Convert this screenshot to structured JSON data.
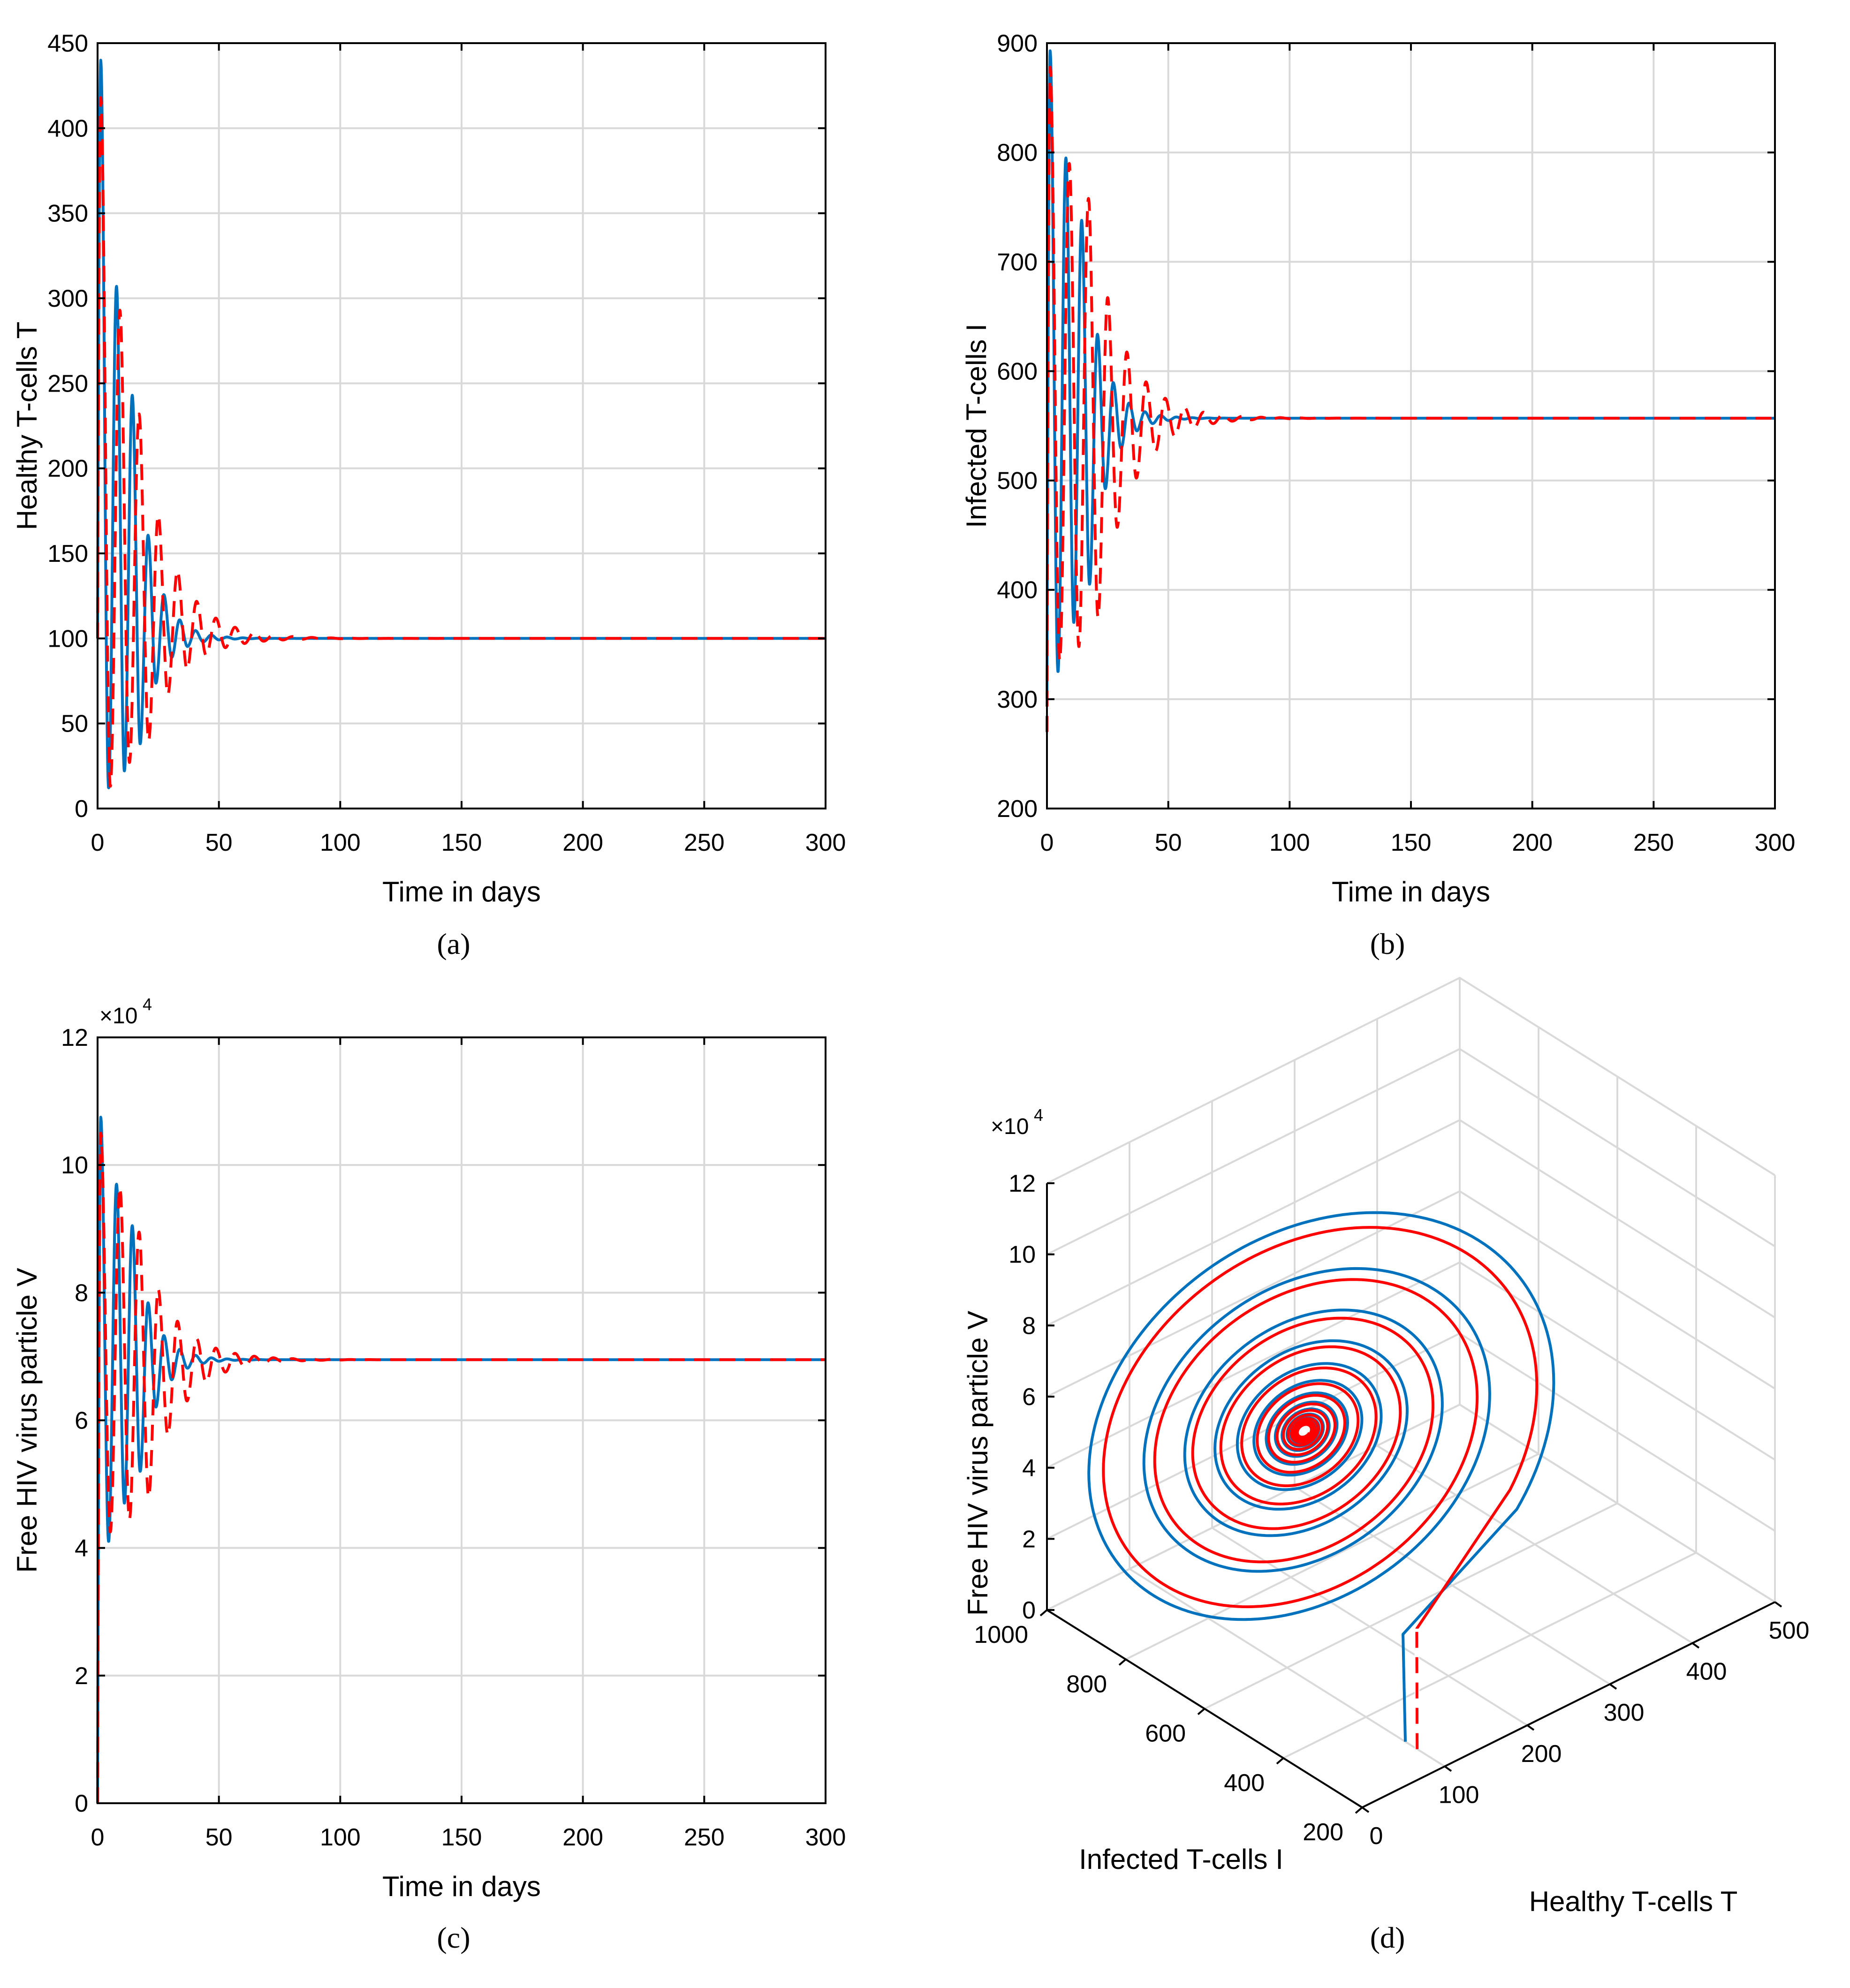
{
  "colors": {
    "blue": "#0072BD",
    "red": "#FF0000",
    "grid": "#D9D9D9",
    "axis": "#000000"
  },
  "chart_data": [
    {
      "type": "line",
      "caption": "(a)",
      "xlabel": "Time in days",
      "ylabel": "Healthy T-cells T",
      "xlim": [
        0,
        300
      ],
      "ylim": [
        0,
        450
      ],
      "xticks": [
        "0",
        "50",
        "100",
        "150",
        "200",
        "250",
        "300"
      ],
      "yticks": [
        "0",
        "50",
        "100",
        "150",
        "200",
        "250",
        "300",
        "350",
        "400",
        "450"
      ],
      "grid": true,
      "series": [
        {
          "style": "solid",
          "color": "blue",
          "start": 100,
          "eq": 100,
          "period": 6.5,
          "decay": 35,
          "peaks": [
            440,
            307,
            243
          ],
          "troughs": [
            12,
            22,
            38
          ]
        },
        {
          "style": "dashed",
          "color": "red",
          "start": 100,
          "eq": 100,
          "period": 7.9,
          "decay": 50,
          "peaks": [
            418,
            293,
            232
          ],
          "troughs": [
            13,
            27,
            40
          ]
        }
      ]
    },
    {
      "type": "line",
      "caption": "(b)",
      "xlabel": "Time in days",
      "ylabel": "Infected T-cells I",
      "xlim": [
        0,
        300
      ],
      "ylim": [
        200,
        900
      ],
      "xticks": [
        "0",
        "50",
        "100",
        "150",
        "200",
        "250",
        "300"
      ],
      "yticks": [
        "200",
        "300",
        "400",
        "500",
        "600",
        "700",
        "800",
        "900"
      ],
      "grid": true,
      "series": [
        {
          "style": "solid",
          "color": "blue",
          "start": 300,
          "eq": 557,
          "period": 6.5,
          "decay": 35,
          "peaks": [
            893,
            795,
            738
          ],
          "troughs": [
            325,
            370,
            405
          ]
        },
        {
          "style": "dashed",
          "color": "red",
          "start": 270,
          "eq": 557,
          "period": 7.9,
          "decay": 50,
          "peaks": [
            878,
            790,
            758
          ],
          "troughs": [
            335,
            348,
            375
          ]
        }
      ]
    },
    {
      "type": "line",
      "caption": "(c)",
      "xlabel": "Time in days",
      "ylabel": "Free HIV virus particle V",
      "multiplier": "×10",
      "multiplier_exp": "4",
      "xlim": [
        0,
        300
      ],
      "ylim": [
        0,
        120000
      ],
      "xticks": [
        "0",
        "50",
        "100",
        "150",
        "200",
        "250",
        "300"
      ],
      "yticks": [
        "0",
        "2",
        "4",
        "6",
        "8",
        "10",
        "12"
      ],
      "grid": true,
      "series": [
        {
          "style": "solid",
          "color": "blue",
          "start": 0,
          "eq": 69500,
          "period": 6.5,
          "decay": 35,
          "peaks": [
            107500,
            97000,
            90500
          ],
          "troughs": [
            41000,
            47000,
            52000
          ]
        },
        {
          "style": "dashed",
          "color": "red",
          "start": 0,
          "eq": 69500,
          "period": 7.9,
          "decay": 50,
          "peaks": [
            105000,
            96500,
            89500
          ],
          "troughs": [
            42500,
            44500,
            48000
          ]
        }
      ]
    },
    {
      "type": "line3d",
      "caption": "(d)",
      "xlabel": "Healthy T-cells T",
      "ylabel": "Infected T-cells I",
      "zlabel": "Free HIV virus particle V",
      "multiplier": "×10",
      "multiplier_exp": "4",
      "xlim": [
        0,
        500
      ],
      "ylim": [
        200,
        1000
      ],
      "zlim": [
        0,
        120000
      ],
      "xticks": [
        "0",
        "100",
        "200",
        "300",
        "400",
        "500"
      ],
      "yticks": [
        "200",
        "400",
        "600",
        "800",
        "1000"
      ],
      "zticks": [
        "0",
        "2",
        "4",
        "6",
        "8",
        "10",
        "12"
      ],
      "grid": true,
      "equilibrium": {
        "T": 100,
        "I": 557,
        "V": 69500
      },
      "series": [
        {
          "style": "solid",
          "color": "blue",
          "start": {
            "T": 100,
            "I": 300,
            "V": 0
          }
        },
        {
          "style": "dashed",
          "color": "red",
          "start": {
            "T": 100,
            "I": 270,
            "V": 0
          }
        }
      ]
    }
  ]
}
